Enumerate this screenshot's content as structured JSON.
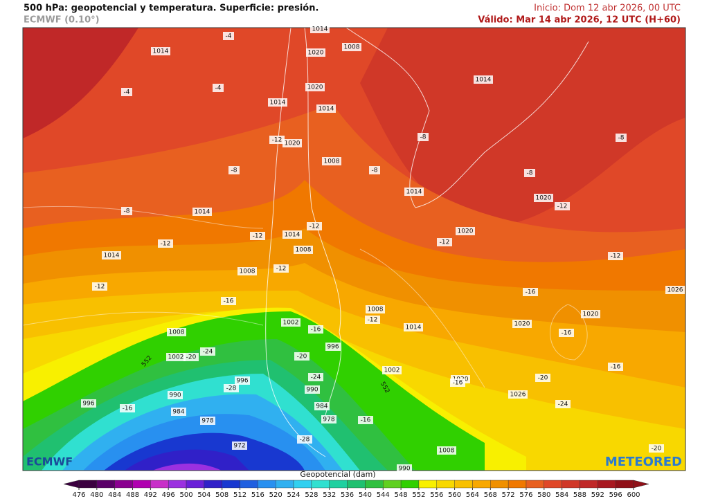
{
  "header": {
    "title": "500 hPa: geopotencial y temperatura. Superficie: presión.",
    "model": "ECMWF (0.10°)",
    "init": "Inicio: Dom 12 abr 2026, 00 UTC",
    "valid": "Válido: Mar 14 abr 2026, 12 UTC (H+60)"
  },
  "map": {
    "labels": [
      -4,
      1014,
      1014,
      1020,
      1008,
      -4,
      -4,
      1020,
      1014,
      1014,
      1014,
      -12,
      1020,
      1008,
      -8,
      -8,
      -8,
      -8,
      -8,
      1014,
      1020,
      -12,
      -8,
      1014,
      -12,
      -12,
      1014,
      1008,
      1020,
      -12,
      -12,
      1014,
      -12,
      1008,
      -12,
      -12,
      -16,
      -16,
      1026,
      1008,
      -12,
      1002,
      -16,
      1014,
      1020,
      1020,
      -16,
      1008,
      996,
      1002,
      -20,
      -24,
      -20,
      -16,
      1002,
      -24,
      996,
      1020,
      -16,
      -20,
      -28,
      990,
      990,
      1026,
      -24,
      996,
      -16,
      984,
      984,
      978,
      978,
      -16,
      972,
      -28,
      1008,
      990,
      -20,
      552,
      552
    ]
  },
  "colorbar": {
    "title": "Geopotencial (dam)",
    "ticks": [
      476,
      480,
      484,
      488,
      492,
      496,
      500,
      504,
      508,
      512,
      516,
      520,
      524,
      528,
      532,
      536,
      540,
      544,
      548,
      552,
      556,
      560,
      564,
      568,
      572,
      576,
      580,
      584,
      588,
      592,
      596,
      600
    ],
    "colors": [
      "#3b0040",
      "#5a0068",
      "#8a0090",
      "#b000b0",
      "#c830c8",
      "#9b30e0",
      "#6a20d8",
      "#3020c8",
      "#1838d0",
      "#2060e0",
      "#2890f0",
      "#30b0f0",
      "#30d0f0",
      "#30e0d0",
      "#20d0a0",
      "#20c070",
      "#30c040",
      "#60d020",
      "#30d000",
      "#f8f000",
      "#f8d800",
      "#f8c000",
      "#f8a800",
      "#f09000",
      "#f07800",
      "#e86020",
      "#e04828",
      "#d03828",
      "#c02828",
      "#a81820",
      "#901018"
    ]
  },
  "logos": {
    "left": "ECMWF",
    "right": "METEORED"
  }
}
